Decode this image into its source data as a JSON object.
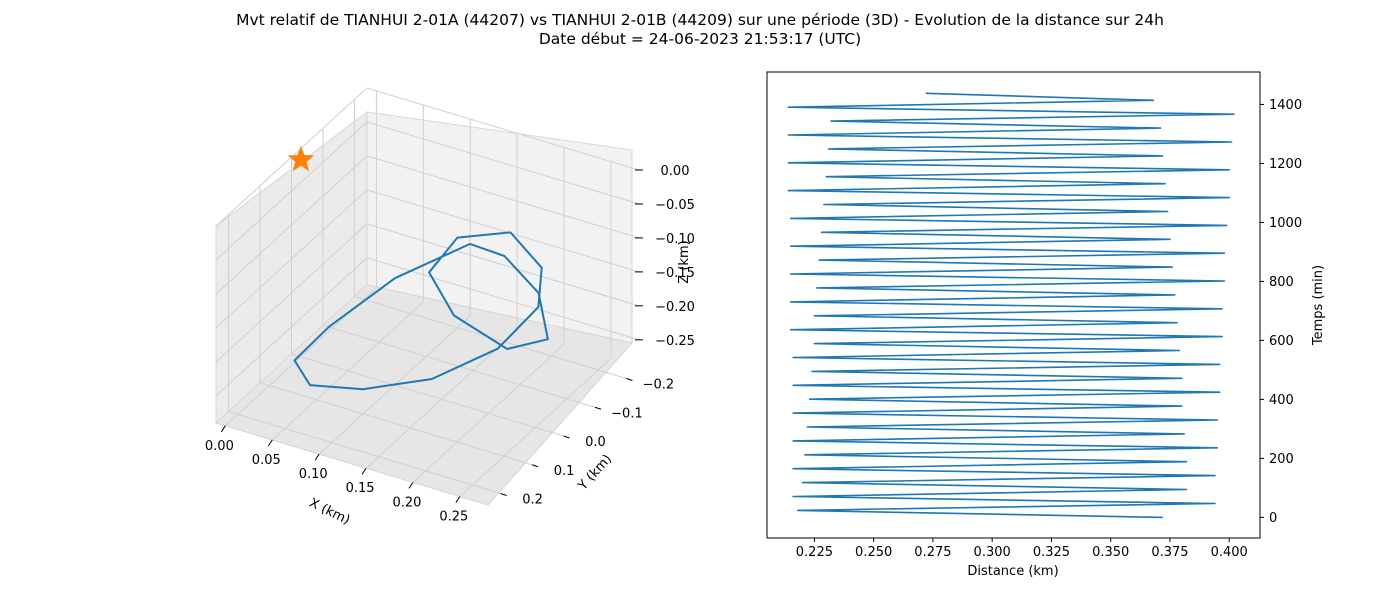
{
  "figure": {
    "title_line1": "Mvt relatif de TIANHUI 2-01A (44207) vs TIANHUI 2-01B (44209) sur une période (3D) - Evolution de la distance sur 24h",
    "title_line2": "Date début = 24-06-2023 21:53:17 (UTC)"
  },
  "colors": {
    "line": "#1f77b4",
    "marker": "#ff7f0e"
  },
  "chart_data": [
    {
      "type": "line3d",
      "xlabel": "X (km)",
      "ylabel": "Y (km)",
      "zlabel": "Z (km)",
      "xlim": [
        -0.01,
        0.28
      ],
      "ylim": [
        -0.24,
        0.24
      ],
      "zlim": [
        -0.29,
        0.0
      ],
      "xticks": [
        "0.00",
        "0.05",
        "0.10",
        "0.15",
        "0.20",
        "0.25"
      ],
      "yticks": [
        "−0.2",
        "−0.1",
        "0.0",
        "0.1",
        "0.2"
      ],
      "zticks": [
        "0.00",
        "−0.05",
        "−0.10",
        "−0.15",
        "−0.20",
        "−0.25"
      ],
      "marker": {
        "symbol": "star",
        "x": 0.0,
        "y": 0.0,
        "z": 0.0
      },
      "grid": true,
      "trajectory": [
        [
          0.12,
          -0.18,
          -0.15
        ],
        [
          0.06,
          -0.12,
          -0.2
        ],
        [
          0.02,
          -0.03,
          -0.25
        ],
        [
          0.01,
          0.05,
          -0.27
        ],
        [
          0.05,
          0.12,
          -0.26
        ],
        [
          0.12,
          0.16,
          -0.22
        ],
        [
          0.19,
          0.15,
          -0.18
        ],
        [
          0.24,
          0.09,
          -0.14
        ],
        [
          0.26,
          0.02,
          -0.1
        ],
        [
          0.24,
          -0.05,
          -0.08
        ],
        [
          0.19,
          -0.1,
          -0.07
        ],
        [
          0.14,
          -0.08,
          -0.09
        ],
        [
          0.13,
          -0.02,
          -0.12
        ],
        [
          0.17,
          0.02,
          -0.15
        ],
        [
          0.23,
          0.03,
          -0.17
        ],
        [
          0.26,
          -0.01,
          -0.16
        ],
        [
          0.23,
          -0.07,
          -0.13
        ],
        [
          0.17,
          -0.14,
          -0.13
        ],
        [
          0.12,
          -0.18,
          -0.15
        ]
      ]
    },
    {
      "type": "line",
      "xlabel": "Distance (km)",
      "ylabel": "Temps (min)",
      "xlim": [
        0.205,
        0.413
      ],
      "ylim": [
        -70,
        1510
      ],
      "xticks": [
        0.225,
        0.25,
        0.275,
        0.3,
        0.325,
        0.35,
        0.375,
        0.4
      ],
      "yticks": [
        0,
        200,
        400,
        600,
        800,
        1000,
        1200,
        1400
      ],
      "series": [
        {
          "oscillation": {
            "t_start": 0,
            "t_end": 1440,
            "half_period_min": 23.57,
            "points": [
              [
                0.372,
                0
              ],
              [
                0.218,
                23.57
              ],
              [
                0.394,
                47.14
              ],
              [
                0.216,
                70.71
              ],
              [
                0.382,
                94.28
              ],
              [
                0.22,
                117.85
              ],
              [
                0.394,
                141.42
              ],
              [
                0.216,
                164.99
              ],
              [
                0.382,
                188.56
              ],
              [
                0.221,
                212.13
              ],
              [
                0.395,
                235.7
              ],
              [
                0.216,
                259.27
              ],
              [
                0.381,
                282.84
              ],
              [
                0.222,
                306.41
              ],
              [
                0.395,
                329.98
              ],
              [
                0.216,
                353.55
              ],
              [
                0.38,
                377.12
              ],
              [
                0.223,
                400.69
              ],
              [
                0.396,
                424.26
              ],
              [
                0.216,
                447.83
              ],
              [
                0.38,
                471.4
              ],
              [
                0.224,
                494.97
              ],
              [
                0.396,
                518.54
              ],
              [
                0.216,
                542.11
              ],
              [
                0.379,
                565.68
              ],
              [
                0.225,
                589.25
              ],
              [
                0.397,
                612.82
              ],
              [
                0.215,
                636.39
              ],
              [
                0.378,
                659.96
              ],
              [
                0.225,
                683.53
              ],
              [
                0.397,
                707.1
              ],
              [
                0.215,
                730.67
              ],
              [
                0.377,
                754.24
              ],
              [
                0.226,
                777.81
              ],
              [
                0.398,
                801.38
              ],
              [
                0.215,
                824.95
              ],
              [
                0.376,
                848.52
              ],
              [
                0.227,
                872.09
              ],
              [
                0.398,
                895.66
              ],
              [
                0.215,
                919.23
              ],
              [
                0.375,
                942.8
              ],
              [
                0.228,
                966.37
              ],
              [
                0.399,
                989.94
              ],
              [
                0.215,
                1013.51
              ],
              [
                0.374,
                1037.08
              ],
              [
                0.229,
                1060.65
              ],
              [
                0.4,
                1084.22
              ],
              [
                0.214,
                1107.79
              ],
              [
                0.373,
                1131.36
              ],
              [
                0.23,
                1154.93
              ],
              [
                0.4,
                1178.5
              ],
              [
                0.214,
                1202.07
              ],
              [
                0.372,
                1225.64
              ],
              [
                0.231,
                1249.21
              ],
              [
                0.401,
                1272.78
              ],
              [
                0.214,
                1296.35
              ],
              [
                0.371,
                1319.92
              ],
              [
                0.232,
                1343.49
              ],
              [
                0.402,
                1367.06
              ],
              [
                0.214,
                1390.63
              ],
              [
                0.368,
                1414.2
              ],
              [
                0.272,
                1437.77
              ]
            ]
          }
        }
      ]
    }
  ]
}
